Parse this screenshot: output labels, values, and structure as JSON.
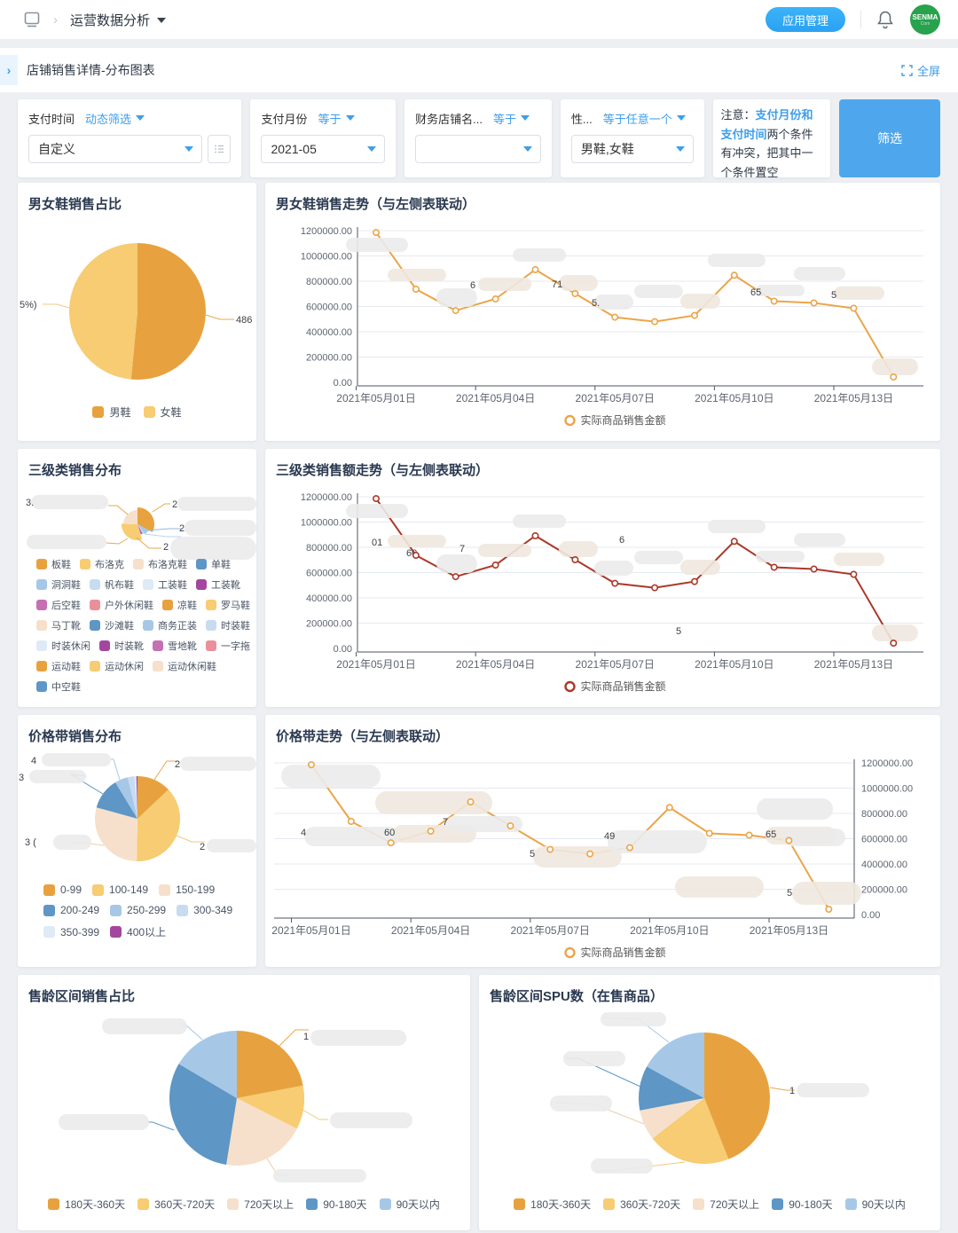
{
  "header": {
    "breadcrumb_title": "运营数据分析",
    "app_manage_label": "应用管理",
    "avatar_text": "SENMA",
    "avatar_sub": "Com"
  },
  "subheader": {
    "title": "店铺销售详情-分布图表",
    "fullscreen_label": "全屏"
  },
  "filters": {
    "cards": [
      {
        "label": "支付时间",
        "op": "动态筛选",
        "value": "自定义"
      },
      {
        "label": "支付月份",
        "op": "等于",
        "value": "2021-05"
      },
      {
        "label": "财务店铺名...",
        "op": "等于",
        "value": ""
      },
      {
        "label": "性...",
        "op": "等于任意一个",
        "value": "男鞋,女鞋"
      }
    ],
    "note": {
      "prefix": "注意：",
      "highlight": "支付月份和支付时间",
      "rest": "两个条件有冲突，把其中一个条件置空"
    },
    "submit_label": "筛选"
  },
  "palette": [
    "#E7A23F",
    "#F7CC72",
    "#F6E0CB",
    "#5E96C5",
    "#A6C8E6",
    "#C7DCF0",
    "#DEEAF6",
    "#A2479D",
    "#C470B2",
    "#E9909A"
  ],
  "line_colors": {
    "orange": "#EBA54A",
    "red": "#AB3829"
  },
  "chart_data": [
    {
      "id": "gender_share",
      "type": "pie",
      "title": "男女鞋销售占比",
      "categories": [
        "男鞋",
        "女鞋"
      ],
      "values": [
        51.5,
        48.5
      ],
      "unit": "%",
      "color_indices": [
        0,
        1
      ],
      "label_fragments": [
        "5%)",
        "486"
      ]
    },
    {
      "id": "gender_trend",
      "type": "line",
      "title": "男女鞋销售走势（与左侧表联动）",
      "x": [
        "2021年05月01日",
        "2021年05月02日",
        "2021年05月03日",
        "2021年05月04日",
        "2021年05月05日",
        "2021年05月06日",
        "2021年05月07日",
        "2021年05月08日",
        "2021年05月09日",
        "2021年05月10日",
        "2021年05月11日",
        "2021年05月12日",
        "2021年05月13日",
        "2021年05月14日"
      ],
      "tick_every": 3,
      "series": [
        {
          "name": "实际商品销售金额",
          "values": [
            1185000,
            737000,
            568000,
            660000,
            891000,
            702000,
            515000,
            480000,
            529000,
            847000,
            642000,
            628000,
            586000,
            42000
          ]
        }
      ],
      "ylim": [
        0,
        1200000
      ],
      "y_ticks": [
        "0.00",
        "200000.00",
        "400000.00",
        "600000.00",
        "800000.00",
        "1000000.00",
        "1200000.00"
      ],
      "line_color": "orange",
      "label_fragments": [
        "6",
        "71",
        "5.",
        "65",
        "5"
      ]
    },
    {
      "id": "category_share",
      "type": "pie",
      "title": "三级类销售分布",
      "categories": [
        "板鞋",
        "布洛克",
        "布洛克鞋",
        "单鞋",
        "洞洞鞋",
        "帆布鞋",
        "工装鞋",
        "工装靴",
        "后空鞋",
        "户外休闲鞋",
        "凉鞋",
        "罗马鞋",
        "马丁靴",
        "沙滩鞋",
        "商务正装",
        "时装鞋",
        "时装休闲",
        "时装靴",
        "雪地靴",
        "一字拖",
        "运动鞋",
        "运动休闲",
        "运动休闲鞋",
        "中空鞋"
      ],
      "slice_values": [
        32.8,
        6.9,
        2.5,
        1.7,
        1.4,
        30.3,
        24.4
      ],
      "slice_color_indices": [
        0,
        4,
        5,
        7,
        8,
        1,
        2
      ],
      "label_fragments": [
        "3.",
        "2",
        "2",
        "2"
      ]
    },
    {
      "id": "category_trend",
      "type": "line",
      "title": "三级类销售额走势（与左侧表联动）",
      "x": [
        "2021年05月01日",
        "2021年05月02日",
        "2021年05月03日",
        "2021年05月04日",
        "2021年05月05日",
        "2021年05月06日",
        "2021年05月07日",
        "2021年05月08日",
        "2021年05月09日",
        "2021年05月10日",
        "2021年05月11日",
        "2021年05月12日",
        "2021年05月13日",
        "2021年05月14日"
      ],
      "tick_every": 3,
      "series": [
        {
          "name": "实际商品销售金额",
          "values": [
            1185000,
            737000,
            568000,
            660000,
            891000,
            702000,
            515000,
            480000,
            529000,
            847000,
            642000,
            628000,
            586000,
            42000
          ]
        }
      ],
      "ylim": [
        0,
        1200000
      ],
      "y_ticks": [
        "0.00",
        "200000.00",
        "400000.00",
        "600000.00",
        "800000.00",
        "1000000.00",
        "1200000.00"
      ],
      "line_color": "red",
      "label_fragments": [
        "01",
        "60",
        "7",
        "6",
        "5"
      ]
    },
    {
      "id": "price_share",
      "type": "pie",
      "title": "价格带销售分布",
      "categories": [
        "0-99",
        "100-149",
        "150-199",
        "200-249",
        "250-299",
        "300-349",
        "350-399",
        "400以上"
      ],
      "values": [
        13,
        37.3,
        29,
        12,
        5,
        2.5,
        0.8,
        0.4
      ],
      "color_indices": [
        0,
        1,
        2,
        3,
        4,
        5,
        6,
        7
      ],
      "label_fragments": [
        "4",
        "3",
        "3 (",
        "2",
        "2"
      ]
    },
    {
      "id": "price_trend",
      "type": "line",
      "title": "价格带走势（与左侧表联动）",
      "x": [
        "2021年05月01日",
        "2021年05月02日",
        "2021年05月03日",
        "2021年05月04日",
        "2021年05月05日",
        "2021年05月06日",
        "2021年05月07日",
        "2021年05月08日",
        "2021年05月09日",
        "2021年05月10日",
        "2021年05月11日",
        "2021年05月12日",
        "2021年05月13日",
        "2021年05月14日"
      ],
      "tick_every": 3,
      "series": [
        {
          "name": "实际商品销售金额",
          "values": [
            1185000,
            737000,
            568000,
            660000,
            891000,
            702000,
            515000,
            480000,
            529000,
            847000,
            642000,
            628000,
            586000,
            42000
          ]
        }
      ],
      "ylim": [
        0,
        1200000
      ],
      "y_ticks": [
        "0.00",
        "200000.00",
        "400000.00",
        "600000.00",
        "800000.00",
        "1000000.00",
        "1200000.00"
      ],
      "line_color": "orange",
      "y_axis_side": "right",
      "label_fragments": [
        "4",
        "60",
        "7",
        "5",
        "49",
        "65",
        "5"
      ]
    },
    {
      "id": "age_share",
      "type": "pie",
      "title": "售龄区间销售占比",
      "categories": [
        "180天-360天",
        "360天-720天",
        "720天以上",
        "90-180天",
        "90天以内"
      ],
      "values": [
        22,
        10.5,
        20,
        31,
        16.5
      ],
      "color_indices": [
        0,
        1,
        2,
        3,
        4
      ],
      "label_fragments": [
        "1"
      ]
    },
    {
      "id": "age_spu",
      "type": "pie",
      "title": "售龄区间SPU数（在售商品）",
      "categories": [
        "180天-360天",
        "360天-720天",
        "720天以上",
        "90-180天",
        "90天以内"
      ],
      "values": [
        44,
        20.5,
        7.5,
        11,
        17
      ],
      "color_indices": [
        0,
        1,
        2,
        3,
        4
      ],
      "label_fragments": [
        "1"
      ]
    }
  ]
}
